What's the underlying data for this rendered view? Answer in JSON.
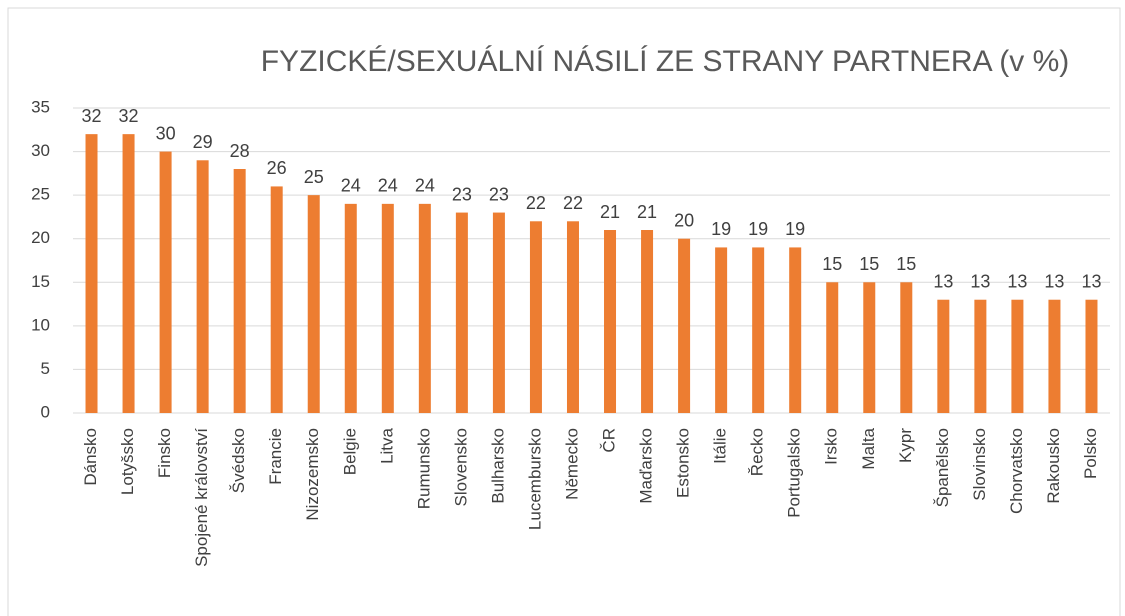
{
  "chart_data": {
    "type": "bar",
    "title": "FYZICKÉ/SEXUÁLNÍ NÁSILÍ ZE STRANY PARTNERA (v %)",
    "categories": [
      "Dánsko",
      "Lotyšsko",
      "Finsko",
      "Spojené království",
      "Švédsko",
      "Francie",
      "Nizozemsko",
      "Belgie",
      "Litva",
      "Rumunsko",
      "Slovensko",
      "Bulharsko",
      "Lucembursko",
      "Německo",
      "ČR",
      "Maďarsko",
      "Estonsko",
      "Itálie",
      "Řecko",
      "Portugalsko",
      "Irsko",
      "Malta",
      "Kypr",
      "Španělsko",
      "Slovinsko",
      "Chorvatsko",
      "Rakousko",
      "Polsko"
    ],
    "values": [
      32,
      32,
      30,
      29,
      28,
      26,
      25,
      24,
      24,
      24,
      23,
      23,
      22,
      22,
      21,
      21,
      20,
      19,
      19,
      19,
      15,
      15,
      15,
      13,
      13,
      13,
      13,
      13
    ],
    "color": "#ed7d31",
    "ylim": [
      0,
      35
    ],
    "yticks": [
      0,
      5,
      10,
      15,
      20,
      25,
      30,
      35
    ],
    "grid": true
  }
}
